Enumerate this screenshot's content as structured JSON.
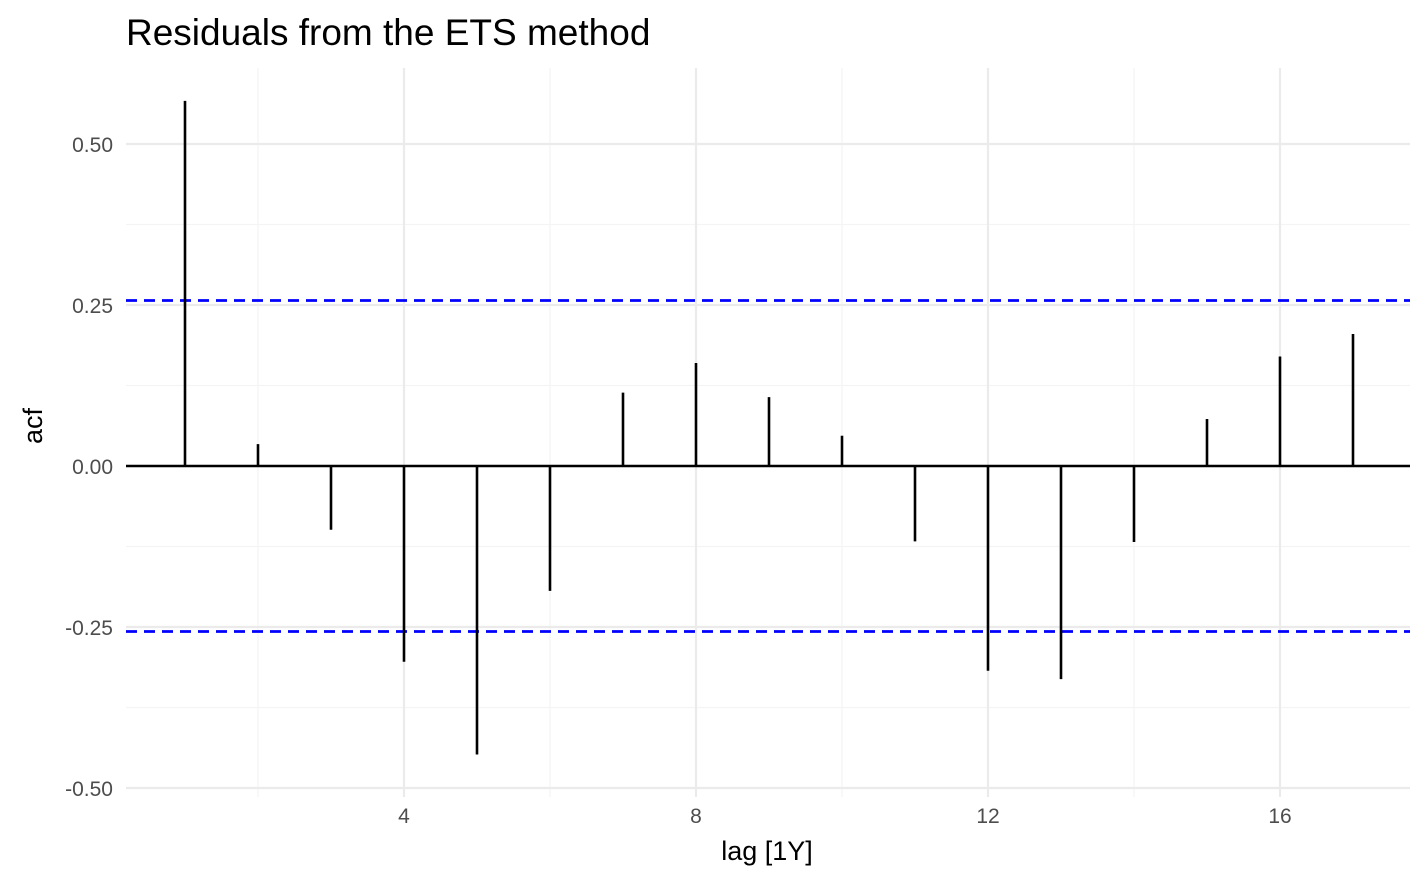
{
  "chart_data": {
    "type": "bar",
    "title": "Residuals from the ETS method",
    "xlabel": "lag [1Y]",
    "ylabel": "acf",
    "x": [
      1,
      2,
      3,
      4,
      5,
      6,
      7,
      8,
      9,
      10,
      11,
      12,
      13,
      14,
      15,
      16,
      17
    ],
    "values": [
      0.567,
      0.034,
      -0.099,
      -0.304,
      -0.448,
      -0.194,
      0.114,
      0.16,
      0.107,
      0.047,
      -0.117,
      -0.318,
      -0.331,
      -0.118,
      0.073,
      0.17,
      0.205
    ],
    "xlim": [
      0.2,
      17.8
    ],
    "ylim": [
      -0.5,
      0.5
    ],
    "x_ticks": [
      4,
      8,
      12,
      16
    ],
    "y_ticks": [
      0.5,
      0.25,
      0.0,
      -0.25,
      -0.5
    ],
    "x_tick_labels": [
      "4",
      "8",
      "12",
      "16"
    ],
    "y_tick_labels": [
      "0.50",
      "0.25",
      "0.00",
      "-0.25",
      "-0.50"
    ],
    "confidence_bounds": [
      0.257,
      -0.257
    ],
    "grid": true,
    "colors": {
      "bars": "#000000",
      "zero_line": "#000000",
      "confidence": "#0000ff",
      "grid_major": "#ebebeb",
      "grid_minor": "#f4f4f4",
      "text": "#4d4d4d"
    }
  }
}
